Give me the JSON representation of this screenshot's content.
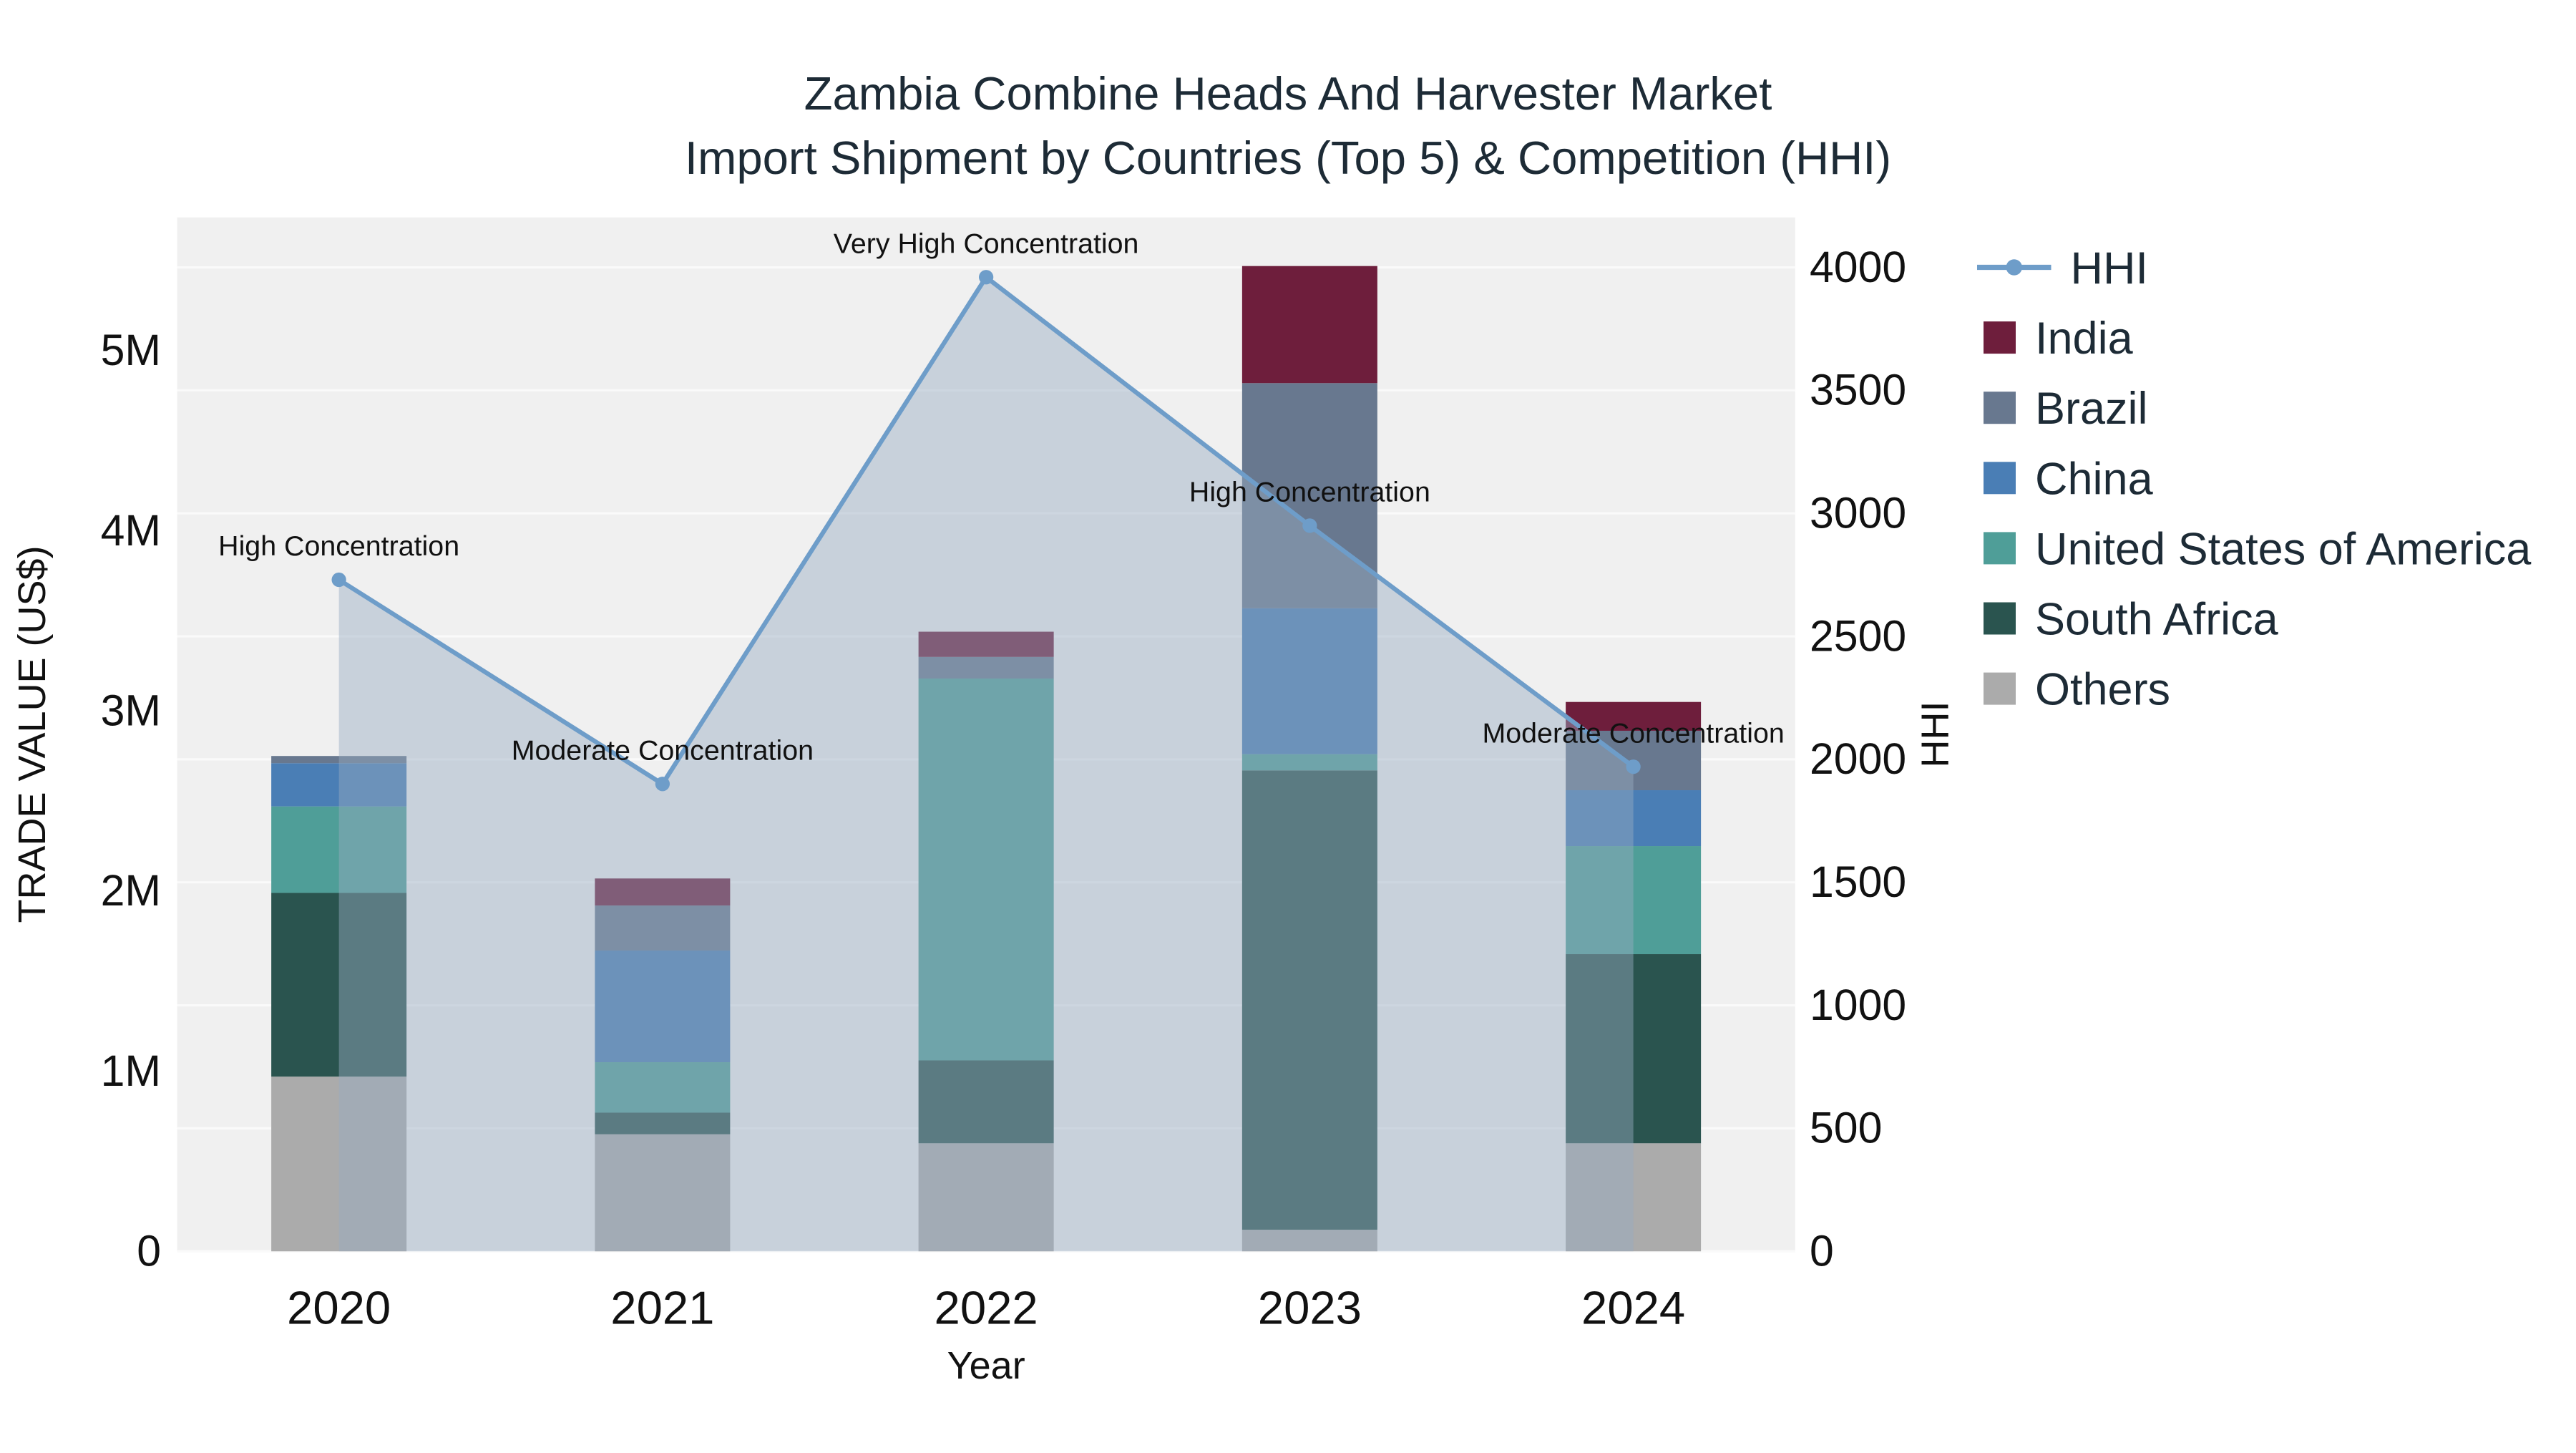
{
  "page": {
    "background": "#ffffff"
  },
  "chart_data": {
    "type": "bar",
    "subtype": "stacked-bars-with-line-overlay",
    "title": "Zambia Combine Heads And Harvester Market",
    "subtitle": "Import Shipment by Countries (Top 5) & Competition (HHI)",
    "xlabel": "Year",
    "ylabel_left": "TRADE VALUE (US$)",
    "ylabel_right": "HHI",
    "categories": [
      "2020",
      "2021",
      "2022",
      "2023",
      "2024"
    ],
    "bar_series": [
      {
        "name": "Others",
        "color": "#ababab",
        "values": [
          970000,
          650000,
          600000,
          120000,
          600000
        ]
      },
      {
        "name": "South Africa",
        "color": "#2a544f",
        "values": [
          1020000,
          120000,
          460000,
          2550000,
          1050000
        ]
      },
      {
        "name": "United States of America",
        "color": "#4f9e98",
        "values": [
          480000,
          280000,
          2120000,
          90000,
          600000
        ]
      },
      {
        "name": "China",
        "color": "#4a7eb5",
        "values": [
          240000,
          620000,
          0,
          810000,
          310000
        ]
      },
      {
        "name": "Brazil",
        "color": "#68788f",
        "values": [
          40000,
          250000,
          120000,
          1250000,
          330000
        ]
      },
      {
        "name": "India",
        "color": "#6e1e3c",
        "values": [
          0,
          150000,
          140000,
          650000,
          160000
        ]
      }
    ],
    "line_series": {
      "name": "HHI",
      "color": "#6e9dc9",
      "area_fill": "rgba(150,170,192,0.45)",
      "values": [
        2730,
        1900,
        3960,
        2950,
        1970
      ]
    },
    "annotations": [
      "High Concentration",
      "Moderate Concentration",
      "Very High Concentration",
      "High Concentration",
      "Moderate Concentration"
    ],
    "ylim_left": [
      0,
      5740000
    ],
    "ylim_right": [
      0,
      4203
    ],
    "yticks_left": [
      {
        "v": 0,
        "label": "0"
      },
      {
        "v": 1000000,
        "label": "1M"
      },
      {
        "v": 2000000,
        "label": "2M"
      },
      {
        "v": 3000000,
        "label": "3M"
      },
      {
        "v": 4000000,
        "label": "4M"
      },
      {
        "v": 5000000,
        "label": "5M"
      }
    ],
    "yticks_right": [
      {
        "v": 0,
        "label": "0"
      },
      {
        "v": 500,
        "label": "500"
      },
      {
        "v": 1000,
        "label": "1000"
      },
      {
        "v": 1500,
        "label": "1500"
      },
      {
        "v": 2000,
        "label": "2000"
      },
      {
        "v": 2500,
        "label": "2500"
      },
      {
        "v": 3000,
        "label": "3000"
      },
      {
        "v": 3500,
        "label": "3500"
      },
      {
        "v": 4000,
        "label": "4000"
      }
    ],
    "legend": [
      {
        "label": "HHI",
        "type": "line",
        "color": "#6e9dc9"
      },
      {
        "label": "India",
        "type": "square",
        "color": "#6e1e3c"
      },
      {
        "label": "Brazil",
        "type": "square",
        "color": "#68788f"
      },
      {
        "label": "China",
        "type": "square",
        "color": "#4a7eb5"
      },
      {
        "label": "United States of America",
        "type": "square",
        "color": "#4f9e98"
      },
      {
        "label": "South Africa",
        "type": "square",
        "color": "#2a544f"
      },
      {
        "label": "Others",
        "type": "square",
        "color": "#ababab"
      }
    ],
    "legend_position": "right",
    "plot_background": "#f0f0f0",
    "grid_color": "#fafafa"
  }
}
